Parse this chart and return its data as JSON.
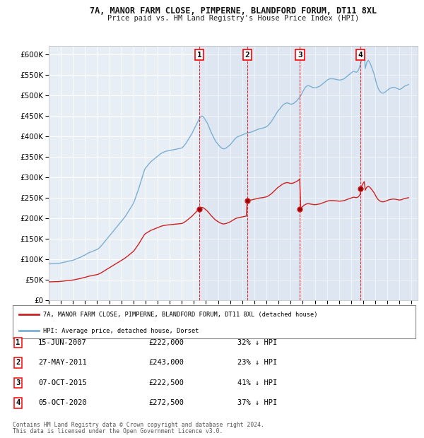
{
  "title": "7A, MANOR FARM CLOSE, PIMPERNE, BLANDFORD FORUM, DT11 8XL",
  "subtitle": "Price paid vs. HM Land Registry's House Price Index (HPI)",
  "ylim": [
    0,
    620000
  ],
  "yticks": [
    0,
    50000,
    100000,
    150000,
    200000,
    250000,
    300000,
    350000,
    400000,
    450000,
    500000,
    550000,
    600000
  ],
  "xlim_start": 1995.0,
  "xlim_end": 2025.5,
  "background_color": "#ffffff",
  "plot_bg_color": "#e8eef5",
  "grid_color": "#ffffff",
  "hpi_color": "#7bafd4",
  "price_color": "#cc2222",
  "shade_color": "#c8d8ea",
  "sale_dates": [
    2007.458,
    2011.411,
    2015.769,
    2020.753
  ],
  "sale_prices": [
    222000,
    243000,
    222500,
    272500
  ],
  "sale_labels": [
    "1",
    "2",
    "3",
    "4"
  ],
  "sale_info": [
    {
      "label": "1",
      "date": "15-JUN-2007",
      "price": "£222,000",
      "hpi": "32% ↓ HPI"
    },
    {
      "label": "2",
      "date": "27-MAY-2011",
      "price": "£243,000",
      "hpi": "23% ↓ HPI"
    },
    {
      "label": "3",
      "date": "07-OCT-2015",
      "price": "£222,500",
      "hpi": "41% ↓ HPI"
    },
    {
      "label": "4",
      "date": "05-OCT-2020",
      "price": "£272,500",
      "hpi": "37% ↓ HPI"
    }
  ],
  "legend_property_label": "7A, MANOR FARM CLOSE, PIMPERNE, BLANDFORD FORUM, DT11 8XL (detached house)",
  "legend_hpi_label": "HPI: Average price, detached house, Dorset",
  "footer_line1": "Contains HM Land Registry data © Crown copyright and database right 2024.",
  "footer_line2": "This data is licensed under the Open Government Licence v3.0.",
  "hpi_data": [
    [
      1995.0,
      88000
    ],
    [
      1995.083,
      88200
    ],
    [
      1995.167,
      88400
    ],
    [
      1995.25,
      88600
    ],
    [
      1995.333,
      88800
    ],
    [
      1995.417,
      89000
    ],
    [
      1995.5,
      89300
    ],
    [
      1995.583,
      89600
    ],
    [
      1995.667,
      89400
    ],
    [
      1995.75,
      89200
    ],
    [
      1995.833,
      89600
    ],
    [
      1995.917,
      90000
    ],
    [
      1996.0,
      90500
    ],
    [
      1996.083,
      91000
    ],
    [
      1996.167,
      91500
    ],
    [
      1996.25,
      92000
    ],
    [
      1996.333,
      92500
    ],
    [
      1996.417,
      93000
    ],
    [
      1996.5,
      93800
    ],
    [
      1996.583,
      94600
    ],
    [
      1996.667,
      95000
    ],
    [
      1996.75,
      95500
    ],
    [
      1996.833,
      96000
    ],
    [
      1996.917,
      96500
    ],
    [
      1997.0,
      97000
    ],
    [
      1997.083,
      98000
    ],
    [
      1997.167,
      99000
    ],
    [
      1997.25,
      100000
    ],
    [
      1997.333,
      101000
    ],
    [
      1997.417,
      102000
    ],
    [
      1997.5,
      103000
    ],
    [
      1997.583,
      104000
    ],
    [
      1997.667,
      105000
    ],
    [
      1997.75,
      106500
    ],
    [
      1997.833,
      108000
    ],
    [
      1997.917,
      109000
    ],
    [
      1998.0,
      110000
    ],
    [
      1998.083,
      111500
    ],
    [
      1998.167,
      113000
    ],
    [
      1998.25,
      114500
    ],
    [
      1998.333,
      115500
    ],
    [
      1998.417,
      116500
    ],
    [
      1998.5,
      117500
    ],
    [
      1998.583,
      118500
    ],
    [
      1998.667,
      119500
    ],
    [
      1998.75,
      120500
    ],
    [
      1998.833,
      121500
    ],
    [
      1998.917,
      122500
    ],
    [
      1999.0,
      123500
    ],
    [
      1999.083,
      125000
    ],
    [
      1999.167,
      127000
    ],
    [
      1999.25,
      129500
    ],
    [
      1999.333,
      132000
    ],
    [
      1999.417,
      135000
    ],
    [
      1999.5,
      138000
    ],
    [
      1999.583,
      141000
    ],
    [
      1999.667,
      144000
    ],
    [
      1999.75,
      147000
    ],
    [
      1999.833,
      150000
    ],
    [
      1999.917,
      153000
    ],
    [
      2000.0,
      156000
    ],
    [
      2000.083,
      159000
    ],
    [
      2000.167,
      162000
    ],
    [
      2000.25,
      165000
    ],
    [
      2000.333,
      168000
    ],
    [
      2000.417,
      171000
    ],
    [
      2000.5,
      174000
    ],
    [
      2000.583,
      177000
    ],
    [
      2000.667,
      180000
    ],
    [
      2000.75,
      183000
    ],
    [
      2000.833,
      186000
    ],
    [
      2000.917,
      189000
    ],
    [
      2001.0,
      192000
    ],
    [
      2001.083,
      195000
    ],
    [
      2001.167,
      198000
    ],
    [
      2001.25,
      201000
    ],
    [
      2001.333,
      204500
    ],
    [
      2001.417,
      208000
    ],
    [
      2001.5,
      212000
    ],
    [
      2001.583,
      216000
    ],
    [
      2001.667,
      220000
    ],
    [
      2001.75,
      224000
    ],
    [
      2001.833,
      228000
    ],
    [
      2001.917,
      232000
    ],
    [
      2002.0,
      236000
    ],
    [
      2002.083,
      242000
    ],
    [
      2002.167,
      249000
    ],
    [
      2002.25,
      256000
    ],
    [
      2002.333,
      263000
    ],
    [
      2002.417,
      270000
    ],
    [
      2002.5,
      278000
    ],
    [
      2002.583,
      286000
    ],
    [
      2002.667,
      294000
    ],
    [
      2002.75,
      302000
    ],
    [
      2002.833,
      310000
    ],
    [
      2002.917,
      318000
    ],
    [
      2003.0,
      322000
    ],
    [
      2003.083,
      325000
    ],
    [
      2003.167,
      328000
    ],
    [
      2003.25,
      331000
    ],
    [
      2003.333,
      334000
    ],
    [
      2003.417,
      337000
    ],
    [
      2003.5,
      339000
    ],
    [
      2003.583,
      341000
    ],
    [
      2003.667,
      343000
    ],
    [
      2003.75,
      345000
    ],
    [
      2003.833,
      347000
    ],
    [
      2003.917,
      349000
    ],
    [
      2004.0,
      351000
    ],
    [
      2004.083,
      353000
    ],
    [
      2004.167,
      355000
    ],
    [
      2004.25,
      357000
    ],
    [
      2004.333,
      358500
    ],
    [
      2004.417,
      360000
    ],
    [
      2004.5,
      361000
    ],
    [
      2004.583,
      362000
    ],
    [
      2004.667,
      362800
    ],
    [
      2004.75,
      363500
    ],
    [
      2004.833,
      364000
    ],
    [
      2004.917,
      364500
    ],
    [
      2005.0,
      365000
    ],
    [
      2005.083,
      365500
    ],
    [
      2005.167,
      366000
    ],
    [
      2005.25,
      366500
    ],
    [
      2005.333,
      367000
    ],
    [
      2005.417,
      367500
    ],
    [
      2005.5,
      368000
    ],
    [
      2005.583,
      368500
    ],
    [
      2005.667,
      369000
    ],
    [
      2005.75,
      369500
    ],
    [
      2005.833,
      370000
    ],
    [
      2005.917,
      370500
    ],
    [
      2006.0,
      371000
    ],
    [
      2006.083,
      373000
    ],
    [
      2006.167,
      376000
    ],
    [
      2006.25,
      379000
    ],
    [
      2006.333,
      382000
    ],
    [
      2006.417,
      386000
    ],
    [
      2006.5,
      390000
    ],
    [
      2006.583,
      394000
    ],
    [
      2006.667,
      398000
    ],
    [
      2006.75,
      402000
    ],
    [
      2006.833,
      406000
    ],
    [
      2006.917,
      411000
    ],
    [
      2007.0,
      416000
    ],
    [
      2007.083,
      421000
    ],
    [
      2007.167,
      426000
    ],
    [
      2007.25,
      431000
    ],
    [
      2007.333,
      436000
    ],
    [
      2007.417,
      441000
    ],
    [
      2007.5,
      445000
    ],
    [
      2007.583,
      448000
    ],
    [
      2007.667,
      449000
    ],
    [
      2007.75,
      448000
    ],
    [
      2007.833,
      445000
    ],
    [
      2007.917,
      441000
    ],
    [
      2008.0,
      437000
    ],
    [
      2008.083,
      433000
    ],
    [
      2008.167,
      428000
    ],
    [
      2008.25,
      422000
    ],
    [
      2008.333,
      416000
    ],
    [
      2008.417,
      410000
    ],
    [
      2008.5,
      405000
    ],
    [
      2008.583,
      400000
    ],
    [
      2008.667,
      395000
    ],
    [
      2008.75,
      390000
    ],
    [
      2008.833,
      386000
    ],
    [
      2008.917,
      383000
    ],
    [
      2009.0,
      380000
    ],
    [
      2009.083,
      377000
    ],
    [
      2009.167,
      374000
    ],
    [
      2009.25,
      372000
    ],
    [
      2009.333,
      370000
    ],
    [
      2009.417,
      369000
    ],
    [
      2009.5,
      369000
    ],
    [
      2009.583,
      370000
    ],
    [
      2009.667,
      371000
    ],
    [
      2009.75,
      373000
    ],
    [
      2009.833,
      375000
    ],
    [
      2009.917,
      377000
    ],
    [
      2010.0,
      379000
    ],
    [
      2010.083,
      382000
    ],
    [
      2010.167,
      385000
    ],
    [
      2010.25,
      388000
    ],
    [
      2010.333,
      391000
    ],
    [
      2010.417,
      394000
    ],
    [
      2010.5,
      396000
    ],
    [
      2010.583,
      398000
    ],
    [
      2010.667,
      399000
    ],
    [
      2010.75,
      400000
    ],
    [
      2010.833,
      401000
    ],
    [
      2010.917,
      402000
    ],
    [
      2011.0,
      403000
    ],
    [
      2011.083,
      404000
    ],
    [
      2011.167,
      405000
    ],
    [
      2011.25,
      406000
    ],
    [
      2011.333,
      407000
    ],
    [
      2011.417,
      408000
    ],
    [
      2011.5,
      408500
    ],
    [
      2011.583,
      409000
    ],
    [
      2011.667,
      409500
    ],
    [
      2011.75,
      410000
    ],
    [
      2011.833,
      411000
    ],
    [
      2011.917,
      412000
    ],
    [
      2012.0,
      413000
    ],
    [
      2012.083,
      414000
    ],
    [
      2012.167,
      415000
    ],
    [
      2012.25,
      416000
    ],
    [
      2012.333,
      417000
    ],
    [
      2012.417,
      418000
    ],
    [
      2012.5,
      418500
    ],
    [
      2012.583,
      419000
    ],
    [
      2012.667,
      419500
    ],
    [
      2012.75,
      420000
    ],
    [
      2012.833,
      421000
    ],
    [
      2012.917,
      422000
    ],
    [
      2013.0,
      423000
    ],
    [
      2013.083,
      425000
    ],
    [
      2013.167,
      427000
    ],
    [
      2013.25,
      430000
    ],
    [
      2013.333,
      433000
    ],
    [
      2013.417,
      436000
    ],
    [
      2013.5,
      440000
    ],
    [
      2013.583,
      444000
    ],
    [
      2013.667,
      448000
    ],
    [
      2013.75,
      452000
    ],
    [
      2013.833,
      456000
    ],
    [
      2013.917,
      460000
    ],
    [
      2014.0,
      463000
    ],
    [
      2014.083,
      466000
    ],
    [
      2014.167,
      469000
    ],
    [
      2014.25,
      472000
    ],
    [
      2014.333,
      475000
    ],
    [
      2014.417,
      477000
    ],
    [
      2014.5,
      479000
    ],
    [
      2014.583,
      480000
    ],
    [
      2014.667,
      481000
    ],
    [
      2014.75,
      481000
    ],
    [
      2014.833,
      480000
    ],
    [
      2014.917,
      479000
    ],
    [
      2015.0,
      478000
    ],
    [
      2015.083,
      478000
    ],
    [
      2015.167,
      479000
    ],
    [
      2015.25,
      480000
    ],
    [
      2015.333,
      482000
    ],
    [
      2015.417,
      484000
    ],
    [
      2015.5,
      486000
    ],
    [
      2015.583,
      489000
    ],
    [
      2015.667,
      492000
    ],
    [
      2015.75,
      495000
    ],
    [
      2015.833,
      499000
    ],
    [
      2015.917,
      503000
    ],
    [
      2016.0,
      508000
    ],
    [
      2016.083,
      513000
    ],
    [
      2016.167,
      517000
    ],
    [
      2016.25,
      520000
    ],
    [
      2016.333,
      522000
    ],
    [
      2016.417,
      523000
    ],
    [
      2016.5,
      523000
    ],
    [
      2016.583,
      522000
    ],
    [
      2016.667,
      521000
    ],
    [
      2016.75,
      520000
    ],
    [
      2016.833,
      519000
    ],
    [
      2016.917,
      518000
    ],
    [
      2017.0,
      518000
    ],
    [
      2017.083,
      518000
    ],
    [
      2017.167,
      519000
    ],
    [
      2017.25,
      520000
    ],
    [
      2017.333,
      521000
    ],
    [
      2017.417,
      522000
    ],
    [
      2017.5,
      524000
    ],
    [
      2017.583,
      526000
    ],
    [
      2017.667,
      528000
    ],
    [
      2017.75,
      530000
    ],
    [
      2017.833,
      532000
    ],
    [
      2017.917,
      534000
    ],
    [
      2018.0,
      536000
    ],
    [
      2018.083,
      538000
    ],
    [
      2018.167,
      539000
    ],
    [
      2018.25,
      540000
    ],
    [
      2018.333,
      540000
    ],
    [
      2018.417,
      540000
    ],
    [
      2018.5,
      540000
    ],
    [
      2018.583,
      539500
    ],
    [
      2018.667,
      539000
    ],
    [
      2018.75,
      538500
    ],
    [
      2018.833,
      538000
    ],
    [
      2018.917,
      537500
    ],
    [
      2019.0,
      537000
    ],
    [
      2019.083,
      537000
    ],
    [
      2019.167,
      537500
    ],
    [
      2019.25,
      538000
    ],
    [
      2019.333,
      539000
    ],
    [
      2019.417,
      540000
    ],
    [
      2019.5,
      542000
    ],
    [
      2019.583,
      544000
    ],
    [
      2019.667,
      546000
    ],
    [
      2019.75,
      548000
    ],
    [
      2019.833,
      550000
    ],
    [
      2019.917,
      552000
    ],
    [
      2020.0,
      554000
    ],
    [
      2020.083,
      556000
    ],
    [
      2020.167,
      558000
    ],
    [
      2020.25,
      558000
    ],
    [
      2020.333,
      557000
    ],
    [
      2020.417,
      556000
    ],
    [
      2020.5,
      557000
    ],
    [
      2020.583,
      560000
    ],
    [
      2020.667,
      566000
    ],
    [
      2020.75,
      574000
    ],
    [
      2020.833,
      582000
    ],
    [
      2020.917,
      591000
    ],
    [
      2021.0,
      600000
    ],
    [
      2021.083,
      609000
    ],
    [
      2021.167,
      565000
    ],
    [
      2021.25,
      575000
    ],
    [
      2021.333,
      582000
    ],
    [
      2021.417,
      585000
    ],
    [
      2021.5,
      582000
    ],
    [
      2021.583,
      577000
    ],
    [
      2021.667,
      571000
    ],
    [
      2021.75,
      564000
    ],
    [
      2021.833,
      557000
    ],
    [
      2021.917,
      550000
    ],
    [
      2022.0,
      540000
    ],
    [
      2022.083,
      530000
    ],
    [
      2022.167,
      522000
    ],
    [
      2022.25,
      516000
    ],
    [
      2022.333,
      511000
    ],
    [
      2022.417,
      508000
    ],
    [
      2022.5,
      506000
    ],
    [
      2022.583,
      505000
    ],
    [
      2022.667,
      505000
    ],
    [
      2022.75,
      506000
    ],
    [
      2022.833,
      508000
    ],
    [
      2022.917,
      510000
    ],
    [
      2023.0,
      512000
    ],
    [
      2023.083,
      514000
    ],
    [
      2023.167,
      516000
    ],
    [
      2023.25,
      517000
    ],
    [
      2023.333,
      518000
    ],
    [
      2023.417,
      519000
    ],
    [
      2023.5,
      519000
    ],
    [
      2023.583,
      519000
    ],
    [
      2023.667,
      518000
    ],
    [
      2023.75,
      517000
    ],
    [
      2023.833,
      516000
    ],
    [
      2023.917,
      515000
    ],
    [
      2024.0,
      514000
    ],
    [
      2024.083,
      515000
    ],
    [
      2024.167,
      516000
    ],
    [
      2024.25,
      518000
    ],
    [
      2024.333,
      520000
    ],
    [
      2024.417,
      522000
    ],
    [
      2024.5,
      523000
    ],
    [
      2024.583,
      524000
    ],
    [
      2024.667,
      525000
    ],
    [
      2024.75,
      526000
    ]
  ]
}
